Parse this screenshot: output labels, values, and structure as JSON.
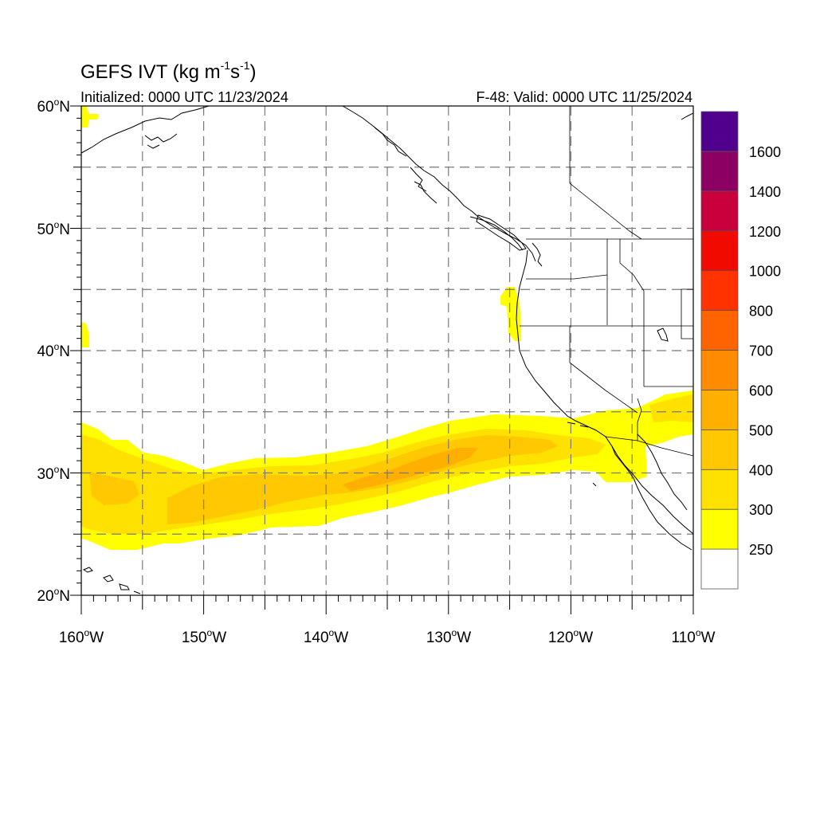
{
  "title": {
    "prefix": "GEFS IVT (kg m",
    "exp1": "-1",
    "mid": "s",
    "exp2": "-1",
    "suffix": ")"
  },
  "subtitle_left": "Initialized: 0000 UTC 11/23/2024",
  "subtitle_right": "F-48: Valid: 0000 UTC 11/25/2024",
  "map": {
    "lon_range": [
      -160,
      -110
    ],
    "lat_range": [
      20,
      60
    ],
    "gridlines": "dashed"
  },
  "axes": {
    "lat_ticks": [
      {
        "value": 60,
        "num": "60",
        "unit": "N"
      },
      {
        "value": 50,
        "num": "50",
        "unit": "N"
      },
      {
        "value": 40,
        "num": "40",
        "unit": "N"
      },
      {
        "value": 30,
        "num": "30",
        "unit": "N"
      },
      {
        "value": 20,
        "num": "20",
        "unit": "N"
      }
    ],
    "lon_ticks": [
      {
        "value": -160,
        "num": "160",
        "unit": "W"
      },
      {
        "value": -150,
        "num": "150",
        "unit": "W"
      },
      {
        "value": -140,
        "num": "140",
        "unit": "W"
      },
      {
        "value": -130,
        "num": "130",
        "unit": "W"
      },
      {
        "value": -120,
        "num": "120",
        "unit": "W"
      },
      {
        "value": -110,
        "num": "110",
        "unit": "W"
      }
    ]
  },
  "colorbar": {
    "labels": [
      "250",
      "300",
      "400",
      "500",
      "600",
      "700",
      "800",
      "1000",
      "1200",
      "1400",
      "1600"
    ],
    "colors": [
      "#ffffff",
      "#ffff00",
      "#ffe100",
      "#ffc800",
      "#ffaf00",
      "#ff8c00",
      "#ff6400",
      "#ff3200",
      "#f00a00",
      "#c8003c",
      "#8c0064",
      "#50008c"
    ]
  },
  "chart_data": {
    "type": "heatmap",
    "variable": "IVT (kg m-1 s-1)",
    "features": [
      {
        "name": "main atmospheric river plume",
        "lon": [
          -160,
          -112
        ],
        "lat_center_west": 28,
        "lat_center_east": 33,
        "max_band": "500-600",
        "max_near_lon": -131,
        "max_near_lat": 30.5
      },
      {
        "name": "secondary core",
        "lon": [
          -158,
          -155
        ],
        "lat": 28,
        "band": "400-500"
      },
      {
        "name": "northern California coastal filament",
        "lon": [
          -125,
          -124
        ],
        "lat": [
          39,
          45
        ],
        "band": "250-300"
      },
      {
        "name": "western edge patch",
        "lon": -160,
        "lat": [
          40,
          42
        ],
        "band": "250-300"
      },
      {
        "name": "northwest corner patch",
        "lon": [
          -160,
          -159
        ],
        "lat": [
          59,
          60
        ],
        "band": "250-300"
      }
    ]
  }
}
